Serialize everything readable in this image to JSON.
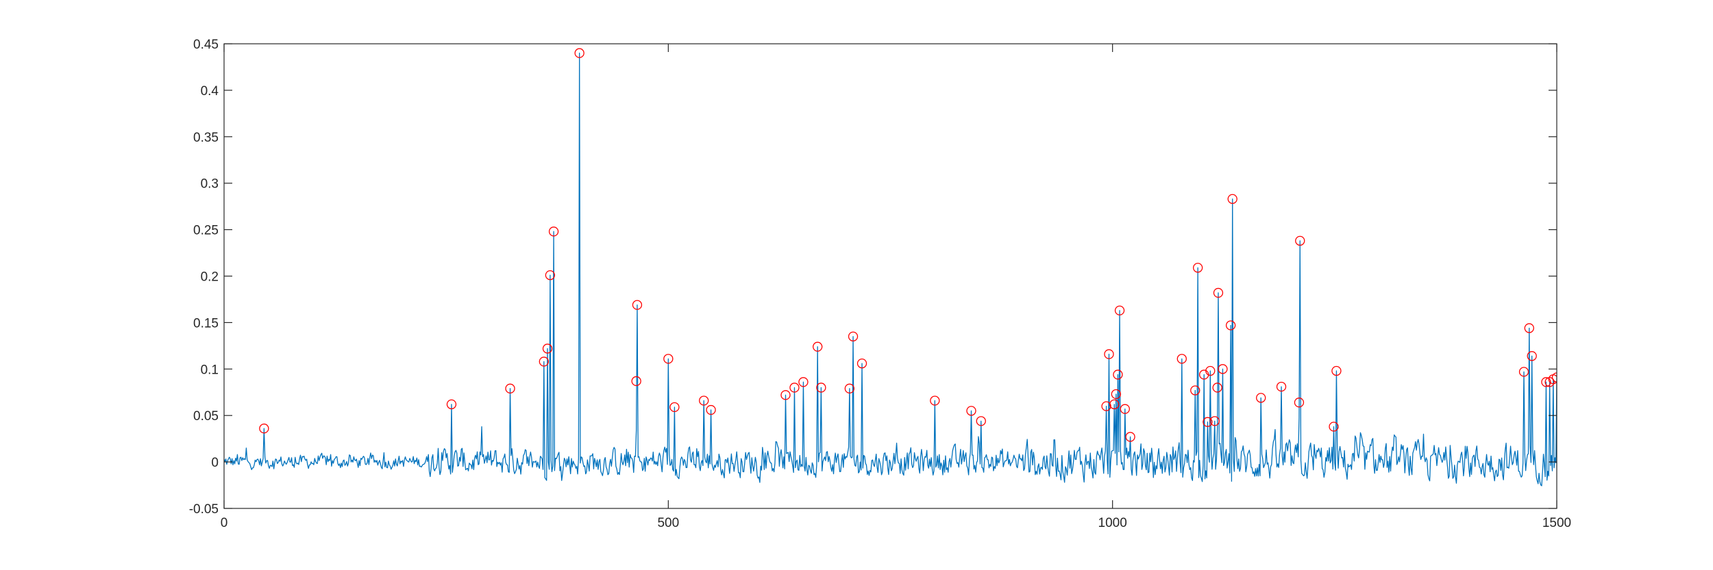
{
  "chart_data": {
    "type": "line",
    "title": "",
    "xlabel": "",
    "ylabel": "",
    "xlim": [
      0,
      1500
    ],
    "ylim": [
      -0.05,
      0.45
    ],
    "grid": false,
    "box": true,
    "x_ticks": [
      0,
      500,
      1000,
      1500
    ],
    "x_tick_labels": [
      "0",
      "500",
      "1000",
      "1500"
    ],
    "y_ticks": [
      -0.05,
      0,
      0.05,
      0.1,
      0.15,
      0.2,
      0.25,
      0.3,
      0.35,
      0.4,
      0.45
    ],
    "y_tick_labels": [
      "-0.05",
      "0",
      "0.05",
      "0.1",
      "0.15",
      "0.2",
      "0.25",
      "0.3",
      "0.35",
      "0.4",
      "0.45"
    ],
    "series": [
      {
        "kind": "line",
        "color": "#0072bd",
        "note": "dense noisy signal of 1500 samples; baseline noise approx -0.03..0.03 with sharp spikes at the marked peaks",
        "points": [
          [
            0,
            0.003
          ],
          [
            15,
            0.008
          ],
          [
            25,
            0.015
          ],
          [
            35,
            0.002
          ],
          [
            45,
            0.036
          ],
          [
            55,
            0.001
          ],
          [
            80,
            0.005
          ],
          [
            120,
            0.008
          ],
          [
            180,
            0.01
          ],
          [
            230,
            0.008
          ],
          [
            245,
            0.01
          ],
          [
            256,
            0.062
          ],
          [
            265,
            0.005
          ],
          [
            290,
            0.038
          ],
          [
            300,
            0.012
          ],
          [
            322,
            0.079
          ],
          [
            330,
            0.004
          ],
          [
            360,
            0.108
          ],
          [
            364,
            0.122
          ],
          [
            367,
            0.201
          ],
          [
            371,
            0.248
          ],
          [
            380,
            -0.02
          ],
          [
            400,
            0.44
          ],
          [
            405,
            -0.005
          ],
          [
            464,
            0.087
          ],
          [
            465,
            0.169
          ],
          [
            470,
            0.0
          ],
          [
            500,
            0.111
          ],
          [
            507,
            0.059
          ],
          [
            540,
            0.066
          ],
          [
            548,
            0.056
          ],
          [
            632,
            0.072
          ],
          [
            642,
            0.08
          ],
          [
            652,
            0.086
          ],
          [
            668,
            0.124
          ],
          [
            672,
            0.08
          ],
          [
            704,
            0.079
          ],
          [
            708,
            0.135
          ],
          [
            718,
            0.106
          ],
          [
            800,
            0.066
          ],
          [
            841,
            0.055
          ],
          [
            852,
            0.044
          ],
          [
            993,
            0.06
          ],
          [
            996,
            0.116
          ],
          [
            1002,
            0.062
          ],
          [
            1004,
            0.073
          ],
          [
            1006,
            0.094
          ],
          [
            1008,
            0.163
          ],
          [
            1014,
            0.057
          ],
          [
            1020,
            0.027
          ],
          [
            1078,
            0.111
          ],
          [
            1093,
            0.077
          ],
          [
            1096,
            0.209
          ],
          [
            1103,
            0.094
          ],
          [
            1107,
            0.043
          ],
          [
            1110,
            0.098
          ],
          [
            1115,
            0.044
          ],
          [
            1118,
            0.08
          ],
          [
            1119,
            0.182
          ],
          [
            1124,
            0.1
          ],
          [
            1133,
            0.147
          ],
          [
            1135,
            0.283
          ],
          [
            1167,
            0.069
          ],
          [
            1190,
            0.081
          ],
          [
            1210,
            0.064
          ],
          [
            1211,
            0.238
          ],
          [
            1249,
            0.038
          ],
          [
            1252,
            0.098
          ],
          [
            1350,
            0.03
          ],
          [
            1463,
            0.097
          ],
          [
            1469,
            0.144
          ],
          [
            1472,
            0.114
          ],
          [
            1488,
            0.086
          ],
          [
            1492,
            0.086
          ],
          [
            1496,
            0.089
          ],
          [
            1500,
            0.091
          ]
        ]
      },
      {
        "kind": "peak_markers",
        "marker": "circle",
        "color": "#ff0000",
        "points": [
          [
            45,
            0.036
          ],
          [
            256,
            0.062
          ],
          [
            322,
            0.079
          ],
          [
            360,
            0.108
          ],
          [
            364,
            0.122
          ],
          [
            367,
            0.201
          ],
          [
            371,
            0.248
          ],
          [
            400,
            0.44
          ],
          [
            464,
            0.087
          ],
          [
            465,
            0.169
          ],
          [
            500,
            0.111
          ],
          [
            507,
            0.059
          ],
          [
            540,
            0.066
          ],
          [
            548,
            0.056
          ],
          [
            632,
            0.072
          ],
          [
            642,
            0.08
          ],
          [
            652,
            0.086
          ],
          [
            668,
            0.124
          ],
          [
            672,
            0.08
          ],
          [
            704,
            0.079
          ],
          [
            708,
            0.135
          ],
          [
            718,
            0.106
          ],
          [
            800,
            0.066
          ],
          [
            841,
            0.055
          ],
          [
            852,
            0.044
          ],
          [
            993,
            0.06
          ],
          [
            996,
            0.116
          ],
          [
            1002,
            0.062
          ],
          [
            1004,
            0.073
          ],
          [
            1006,
            0.094
          ],
          [
            1008,
            0.163
          ],
          [
            1014,
            0.057
          ],
          [
            1020,
            0.027
          ],
          [
            1078,
            0.111
          ],
          [
            1093,
            0.077
          ],
          [
            1096,
            0.209
          ],
          [
            1103,
            0.094
          ],
          [
            1107,
            0.043
          ],
          [
            1110,
            0.098
          ],
          [
            1115,
            0.044
          ],
          [
            1118,
            0.08
          ],
          [
            1119,
            0.182
          ],
          [
            1124,
            0.1
          ],
          [
            1133,
            0.147
          ],
          [
            1135,
            0.283
          ],
          [
            1167,
            0.069
          ],
          [
            1190,
            0.081
          ],
          [
            1210,
            0.064
          ],
          [
            1211,
            0.238
          ],
          [
            1249,
            0.038
          ],
          [
            1252,
            0.098
          ],
          [
            1463,
            0.097
          ],
          [
            1469,
            0.144
          ],
          [
            1472,
            0.114
          ],
          [
            1488,
            0.086
          ],
          [
            1492,
            0.086
          ],
          [
            1496,
            0.089
          ],
          [
            1500,
            0.091
          ]
        ]
      }
    ]
  }
}
